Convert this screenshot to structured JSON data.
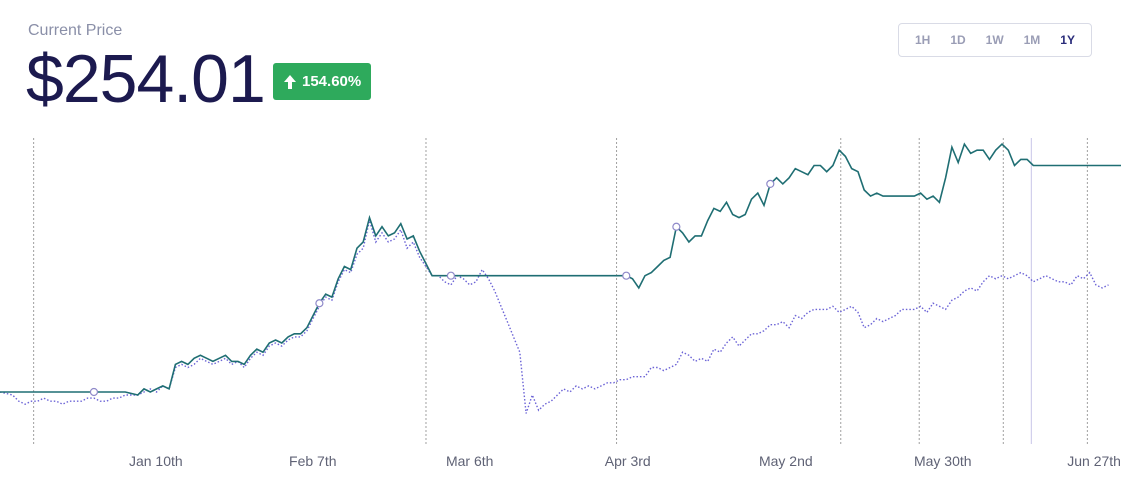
{
  "header": {
    "label": "Current Price",
    "price": "$254.01",
    "change": "154.60%",
    "change_color": "#2eaa5c"
  },
  "ranges": [
    {
      "label": "1H",
      "active": false
    },
    {
      "label": "1D",
      "active": false
    },
    {
      "label": "1W",
      "active": false
    },
    {
      "label": "1M",
      "active": false
    },
    {
      "label": "1Y",
      "active": true
    }
  ],
  "chart_data": {
    "type": "line",
    "colors": {
      "primary": "#1f6e73",
      "secondary": "#6b63d6",
      "grid": "#a0a0a0",
      "marker": "#8f89c9"
    },
    "x_ticks": [
      "Jan 10th",
      "Feb 7th",
      "Mar 6th",
      "Apr 3rd",
      "May 2nd",
      "May 30th",
      "Jun 27th"
    ],
    "y_range": [
      0,
      100
    ],
    "vlines": [
      3,
      38,
      55,
      75,
      82,
      89.5,
      97
    ],
    "hover_line": 92,
    "markers_primary": [
      15,
      51,
      72,
      100,
      108,
      123
    ],
    "markers_secondary": [],
    "primary": [
      17,
      17,
      17,
      17,
      17,
      17,
      17,
      17,
      17,
      17,
      17,
      17,
      17,
      17,
      17,
      17,
      17,
      17,
      17,
      17,
      17,
      16.5,
      16,
      18,
      17,
      18,
      19,
      18,
      26,
      27,
      26,
      28,
      29,
      28,
      27,
      28,
      29,
      27,
      27,
      26,
      29,
      31,
      30,
      33,
      34,
      33,
      35,
      36,
      36,
      38,
      42,
      46,
      49,
      48,
      54,
      58,
      57,
      64,
      66,
      74,
      68,
      71,
      68,
      69,
      72,
      67,
      68,
      63,
      59,
      55,
      55,
      55,
      55,
      55,
      55,
      55,
      55,
      55,
      55,
      55,
      55,
      55,
      55,
      55,
      55,
      55,
      55,
      55,
      55,
      55,
      55,
      55,
      55,
      55,
      55,
      55,
      55,
      55,
      55,
      55,
      55,
      54,
      51,
      55,
      56,
      58,
      60,
      61,
      71,
      69,
      66,
      68,
      68,
      73,
      77,
      76,
      79,
      75,
      74,
      75,
      80,
      82,
      78,
      85,
      87,
      85,
      87,
      90,
      89,
      88,
      91,
      91,
      89,
      91,
      96,
      94,
      90,
      89,
      83,
      81,
      82,
      81,
      81,
      81,
      81,
      81,
      81,
      82,
      80,
      81,
      79,
      87,
      97,
      92,
      98,
      95,
      96,
      96,
      93,
      96,
      98,
      96,
      91,
      93,
      93,
      91,
      91,
      91,
      91,
      91,
      91,
      91,
      91,
      91,
      91,
      91,
      91,
      91,
      91,
      91
    ],
    "secondary": [
      17,
      16.5,
      16,
      14,
      13,
      14,
      14,
      15,
      14,
      14,
      13,
      14,
      14,
      14,
      15,
      15,
      14,
      14,
      15,
      15,
      16,
      16,
      16,
      17,
      18,
      17,
      19,
      18,
      25,
      26,
      25,
      26,
      28,
      27,
      26,
      27,
      28,
      26,
      27,
      25,
      28,
      30,
      29,
      32,
      33,
      32,
      34,
      35,
      35,
      37,
      41,
      45,
      48,
      47,
      53,
      57,
      56,
      62,
      64,
      73,
      66,
      69,
      66,
      67,
      70,
      64,
      66,
      61,
      58,
      55,
      55,
      53,
      52,
      55,
      54,
      52,
      53,
      57,
      54,
      50,
      45,
      40,
      35,
      30,
      10,
      16,
      11,
      13,
      14,
      16,
      18,
      17,
      19,
      18,
      19,
      18,
      19,
      20,
      20,
      21,
      21,
      22,
      22,
      22,
      25,
      25,
      24,
      25,
      26,
      30,
      29,
      27,
      28,
      27,
      31,
      30,
      33,
      35,
      32,
      34,
      36,
      36,
      37,
      39,
      39,
      40,
      38,
      42,
      41,
      43,
      44,
      44,
      44,
      45,
      43,
      44,
      45,
      43,
      38,
      39,
      41,
      40,
      41,
      42,
      44,
      44,
      44,
      45,
      43,
      46,
      45,
      44,
      47,
      48,
      50,
      51,
      50,
      53,
      55,
      54,
      55,
      54,
      55,
      56,
      55,
      53,
      54,
      55,
      54,
      53,
      53,
      52,
      55,
      54,
      56,
      52,
      51,
      52
    ]
  }
}
